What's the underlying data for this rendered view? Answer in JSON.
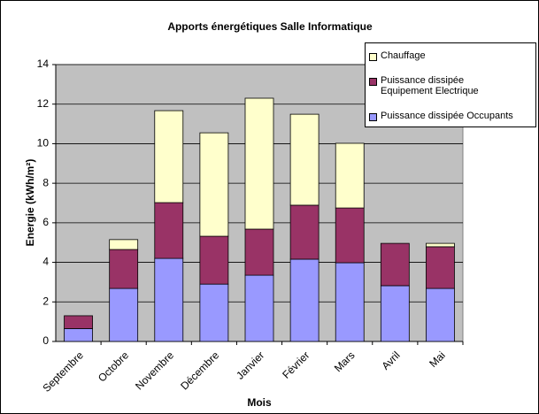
{
  "chart_data": {
    "type": "stacked_bar",
    "title": "Apports énergétiques Salle Informatique",
    "x_label": "Mois",
    "y_label": "Energie (kWh/m²)",
    "categories": [
      "Septembre",
      "Octobre",
      "Novembre",
      "Décembre",
      "Janvier",
      "Février",
      "Mars",
      "Avril",
      "Mai"
    ],
    "series": [
      {
        "name": "Puissance dissipée Occupants",
        "color": "#9999ff",
        "values": [
          0.65,
          2.68,
          4.2,
          2.9,
          3.35,
          4.16,
          3.98,
          2.82,
          2.68
        ]
      },
      {
        "name": "Puissance dissipée Equipement Electrique",
        "color": "#993366",
        "values": [
          0.65,
          1.97,
          2.82,
          2.42,
          2.33,
          2.73,
          2.77,
          2.14,
          2.11
        ]
      },
      {
        "name": "Chauffage",
        "color": "#ffffcc",
        "values": [
          0,
          0.5,
          4.65,
          5.23,
          6.62,
          4.6,
          3.27,
          0,
          0.17
        ]
      }
    ],
    "ylim": [
      0,
      14
    ],
    "yticks": [
      0,
      2,
      4,
      6,
      8,
      10,
      12,
      14
    ],
    "grid": true,
    "legend": "upper right"
  }
}
